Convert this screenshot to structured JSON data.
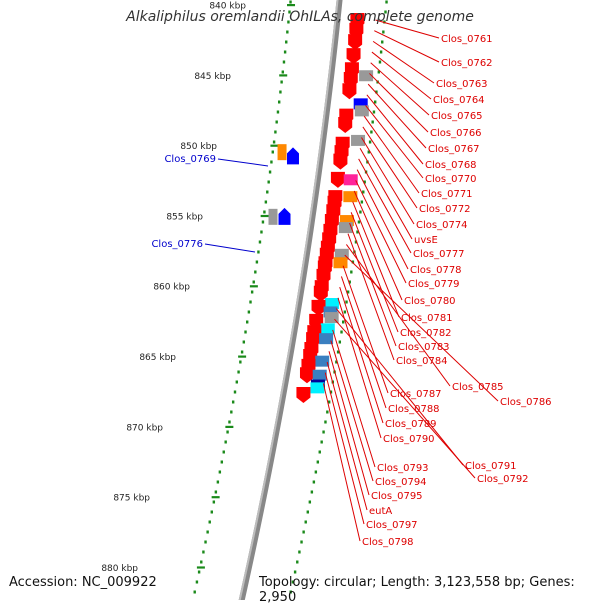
{
  "title": "Alkaliphilus oremlandii OhILAs, complete genome",
  "footer": {
    "accession": "Accession: NC_009922",
    "summary": "Topology: circular; Length: 3,123,558 bp; Genes: 2,950"
  },
  "colors": {
    "forward_label": "#dd0000",
    "reverse_label": "#0000cc",
    "backbone": "#888888",
    "tick": "#1a8a1a",
    "cds": "#ff0000",
    "rRNA": "#0000ff",
    "tRNA": "#ff8800",
    "misc": "#999999",
    "pink": "#ff2299",
    "cyan": "#00f0ff",
    "steel": "#3a7fc0",
    "navy": "#000099"
  },
  "scale": {
    "ticks": [
      "840 kbp",
      "845 kbp",
      "850 kbp",
      "855 kbp",
      "860 kbp",
      "865 kbp",
      "870 kbp",
      "875 kbp",
      "880 kbp"
    ]
  },
  "forward_labels": [
    "Clos_0761",
    "Clos_0762",
    "Clos_0763",
    "Clos_0764",
    "Clos_0765",
    "Clos_0766",
    "Clos_0767",
    "Clos_0768",
    "Clos_0770",
    "Clos_0771",
    "Clos_0772",
    "Clos_0774",
    "uvsE",
    "Clos_0777",
    "Clos_0778",
    "Clos_0779",
    "Clos_0780",
    "Clos_0781",
    "Clos_0782",
    "Clos_0783",
    "Clos_0784",
    "Clos_0785",
    "Clos_0786",
    "Clos_0787",
    "Clos_0788",
    "Clos_0789",
    "Clos_0790",
    "Clos_0791",
    "Clos_0792",
    "Clos_0793",
    "Clos_0794",
    "Clos_0795",
    "eutA",
    "Clos_0797",
    "Clos_0798"
  ],
  "reverse_labels": [
    "Clos_0769",
    "Clos_0776"
  ],
  "features": [
    {
      "pos": 0.0,
      "ring": "fwd",
      "type": "cds"
    },
    {
      "pos": 0.7,
      "ring": "fwd",
      "type": "cds"
    },
    {
      "pos": 1.5,
      "ring": "fwd",
      "type": "cds"
    },
    {
      "pos": 2.5,
      "ring": "fwd",
      "type": "cds"
    },
    {
      "pos": 3.5,
      "ring": "fwd",
      "type": "cds"
    },
    {
      "pos": 4.0,
      "ring": "fwd",
      "type": "misc"
    },
    {
      "pos": 4.2,
      "ring": "fwd",
      "type": "cds"
    },
    {
      "pos": 5.0,
      "ring": "fwd",
      "type": "cds"
    },
    {
      "pos": 6.0,
      "ring": "fwd",
      "type": "rRNA"
    },
    {
      "pos": 6.5,
      "ring": "fwd",
      "type": "misc"
    },
    {
      "pos": 6.8,
      "ring": "fwd",
      "type": "cds"
    },
    {
      "pos": 7.4,
      "ring": "fwd",
      "type": "cds"
    },
    {
      "pos": 8.6,
      "ring": "fwd",
      "type": "misc"
    },
    {
      "pos": 8.8,
      "ring": "fwd",
      "type": "cds"
    },
    {
      "pos": 9.4,
      "ring": "fwd",
      "type": "cds"
    },
    {
      "pos": 10.0,
      "ring": "fwd",
      "type": "cds"
    },
    {
      "pos": 11.3,
      "ring": "fwd",
      "type": "cds"
    },
    {
      "pos": 11.4,
      "ring": "fwd",
      "type": "pink"
    },
    {
      "pos": 12.6,
      "ring": "fwd",
      "type": "cds"
    },
    {
      "pos": 12.6,
      "ring": "fwd",
      "type": "tRNA"
    },
    {
      "pos": 13.0,
      "ring": "fwd",
      "type": "cds"
    },
    {
      "pos": 13.6,
      "ring": "fwd",
      "type": "cds"
    },
    {
      "pos": 14.3,
      "ring": "fwd",
      "type": "cds"
    },
    {
      "pos": 14.3,
      "ring": "fwd",
      "type": "tRNA"
    },
    {
      "pos": 14.8,
      "ring": "fwd",
      "type": "misc"
    },
    {
      "pos": 15.0,
      "ring": "fwd",
      "type": "cds"
    },
    {
      "pos": 15.6,
      "ring": "fwd",
      "type": "cds"
    },
    {
      "pos": 16.2,
      "ring": "fwd",
      "type": "cds"
    },
    {
      "pos": 16.7,
      "ring": "fwd",
      "type": "cds"
    },
    {
      "pos": 16.7,
      "ring": "fwd",
      "type": "misc"
    },
    {
      "pos": 17.3,
      "ring": "fwd",
      "type": "cds"
    },
    {
      "pos": 17.3,
      "ring": "fwd",
      "type": "tRNA"
    },
    {
      "pos": 17.6,
      "ring": "fwd",
      "type": "cds"
    },
    {
      "pos": 18.2,
      "ring": "fwd",
      "type": "cds"
    },
    {
      "pos": 19.0,
      "ring": "fwd",
      "type": "cds"
    },
    {
      "pos": 19.4,
      "ring": "fwd",
      "type": "cds"
    },
    {
      "pos": 20.2,
      "ring": "fwd",
      "type": "cyan"
    },
    {
      "pos": 20.4,
      "ring": "fwd",
      "type": "cds"
    },
    {
      "pos": 20.8,
      "ring": "fwd",
      "type": "steel"
    },
    {
      "pos": 21.2,
      "ring": "fwd",
      "type": "misc"
    },
    {
      "pos": 21.4,
      "ring": "fwd",
      "type": "cds"
    },
    {
      "pos": 22.0,
      "ring": "fwd",
      "type": "cyan"
    },
    {
      "pos": 22.2,
      "ring": "fwd",
      "type": "cds"
    },
    {
      "pos": 22.7,
      "ring": "fwd",
      "type": "cds"
    },
    {
      "pos": 22.7,
      "ring": "fwd",
      "type": "steel"
    },
    {
      "pos": 23.4,
      "ring": "fwd",
      "type": "cds"
    },
    {
      "pos": 23.9,
      "ring": "fwd",
      "type": "cds"
    },
    {
      "pos": 24.3,
      "ring": "fwd",
      "type": "steel"
    },
    {
      "pos": 24.6,
      "ring": "fwd",
      "type": "cds"
    },
    {
      "pos": 25.2,
      "ring": "fwd",
      "type": "cds"
    },
    {
      "pos": 25.3,
      "ring": "fwd",
      "type": "steel"
    },
    {
      "pos": 26.0,
      "ring": "fwd",
      "type": "navy"
    },
    {
      "pos": 26.2,
      "ring": "fwd",
      "type": "cyan"
    },
    {
      "pos": 26.6,
      "ring": "fwd",
      "type": "cds"
    },
    {
      "pos": 9.4,
      "ring": "rev",
      "type": "tRNA"
    },
    {
      "pos": 9.7,
      "ring": "rev",
      "type": "rRNA"
    },
    {
      "pos": 14.0,
      "ring": "rev",
      "type": "rRNA"
    },
    {
      "pos": 14.0,
      "ring": "rev",
      "type": "misc"
    }
  ]
}
